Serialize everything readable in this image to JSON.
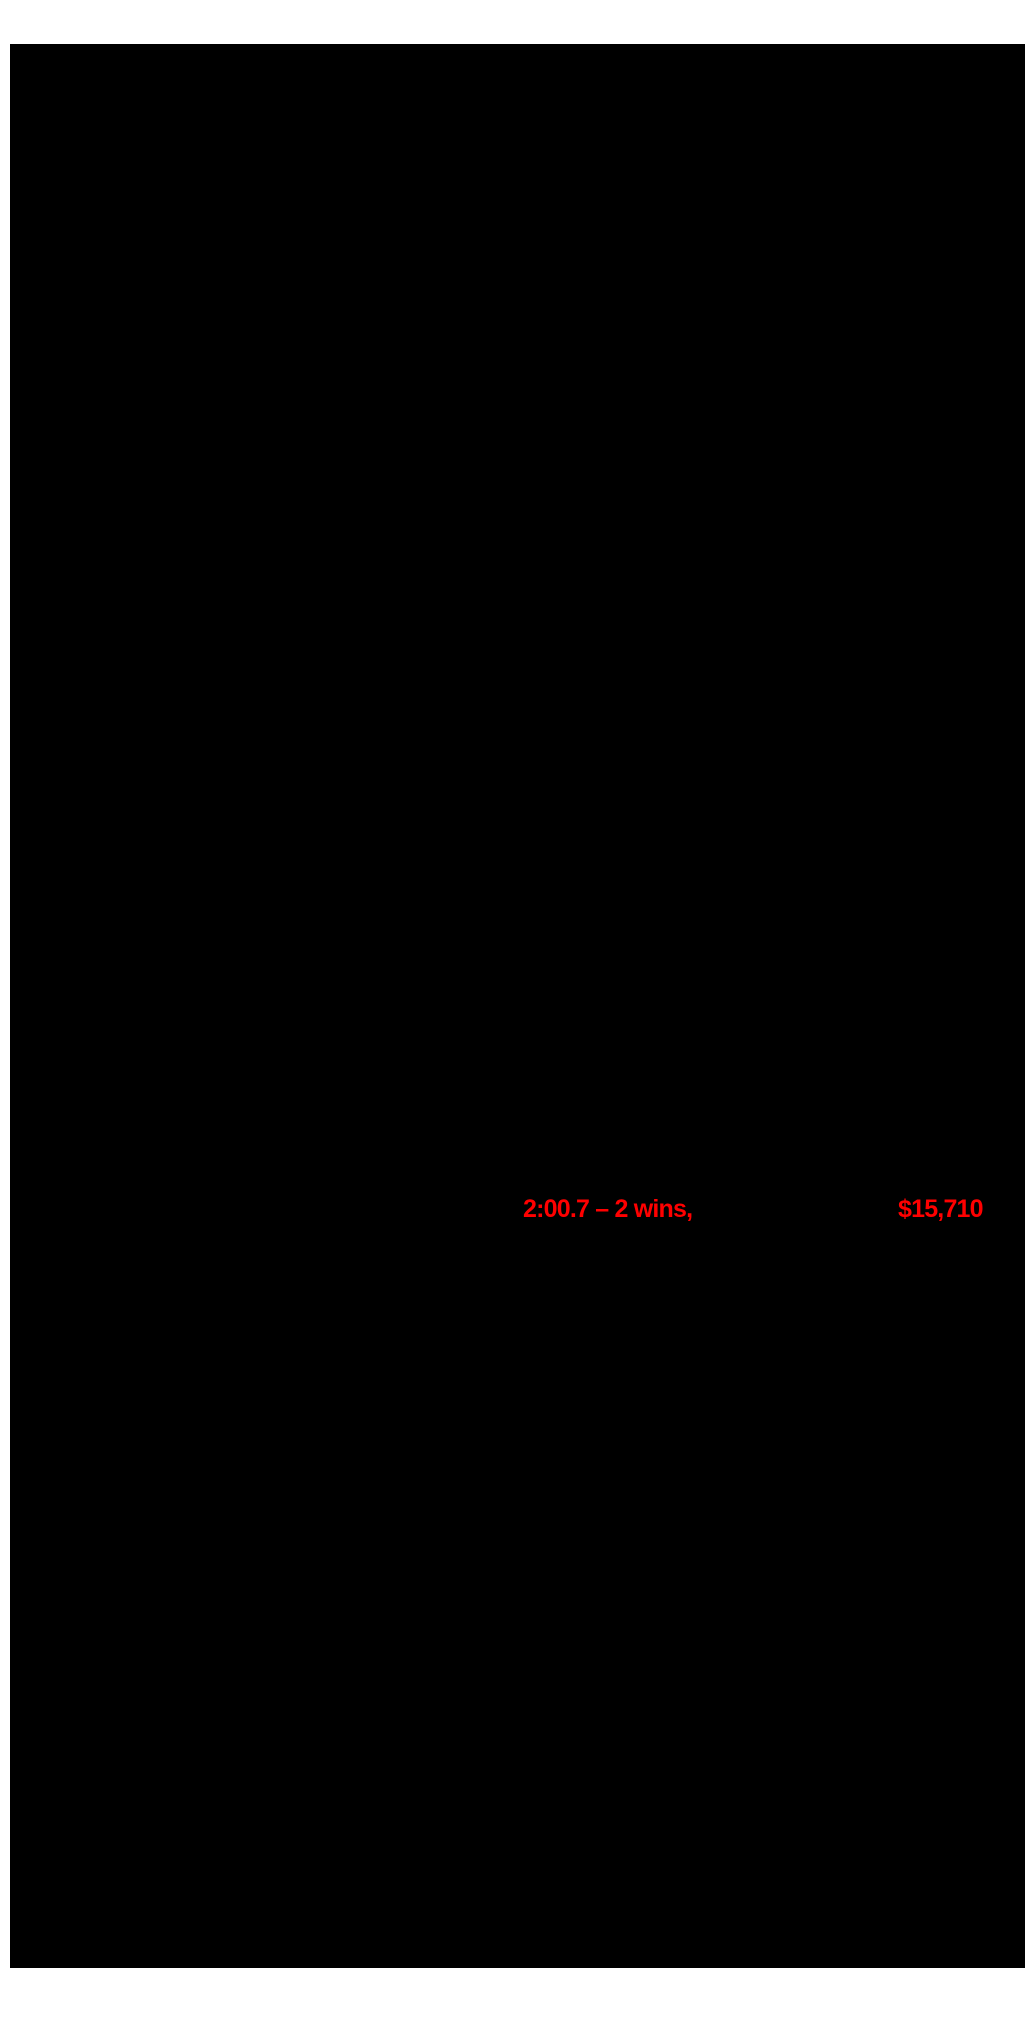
{
  "colors": {
    "page_background": "#ffffff",
    "canvas_background": "#000000",
    "highlight_red": "#ff0000"
  },
  "document": {
    "record_line": {
      "time_wins": "2:00.7 – 2 wins,",
      "earnings": "$15,710"
    }
  }
}
